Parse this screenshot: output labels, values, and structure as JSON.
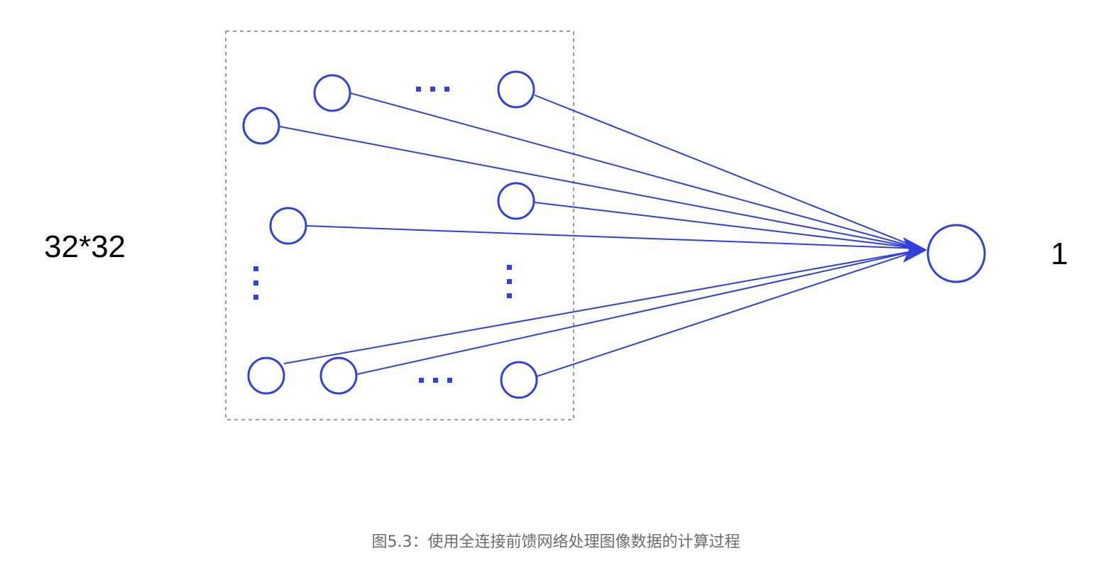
{
  "input_label": "32*32",
  "output_label": "1",
  "caption": "图5.3：使用全连接前馈网络处理图像数据的计算过程",
  "ellipsis_horizontal": "···",
  "colors": {
    "node_stroke": "#2f3fe0",
    "edge": "#2f3fe0",
    "box_border": "#9a9a9a",
    "caption": "#6b6b6b",
    "label": "#000000"
  }
}
